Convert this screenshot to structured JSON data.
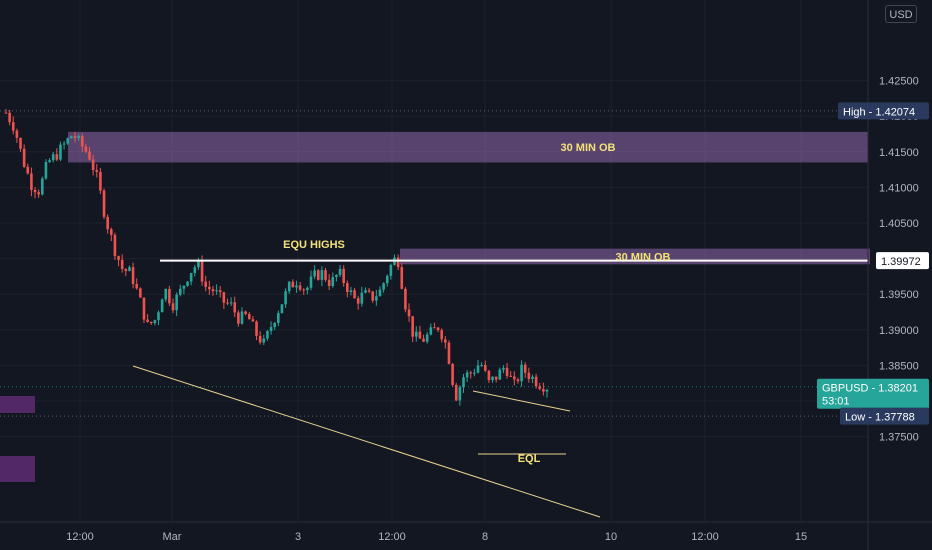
{
  "chart_data": {
    "type": "candlestick",
    "symbol": "GBPUSD",
    "currency": "USD",
    "price_axis": {
      "range": [
        1.3735,
        1.4255
      ],
      "ticks": [
        1.375,
        1.38,
        1.385,
        1.39,
        1.395,
        1.4,
        1.405,
        1.41,
        1.415,
        1.42,
        1.425
      ],
      "tick_labels": [
        "1.37500",
        "1.38000",
        "1.38500",
        "1.39000",
        "1.39500",
        "1.40000",
        "1.40500",
        "1.41000",
        "1.41500",
        "1.42000",
        "1.42500"
      ]
    },
    "time_axis": {
      "tick_labels": [
        "12:00",
        "Mar",
        "3",
        "12:00",
        "8",
        "10",
        "12:00",
        "15"
      ]
    },
    "markers": {
      "high": {
        "label": "High",
        "value": "1.42074"
      },
      "low": {
        "label": "Low",
        "value": "1.37788"
      },
      "level": {
        "value": "1.39972"
      },
      "current": {
        "label": "GBPUSD",
        "value": "1.38201",
        "countdown": "53:01"
      }
    },
    "zones": [
      {
        "label": "30 MIN OB",
        "from": 1.4135,
        "to": 1.4178
      },
      {
        "label": "30 MIN OB",
        "from": 1.3992,
        "to": 1.4014
      }
    ],
    "annotations": [
      "EQU HIGHS",
      "EQL"
    ],
    "close_path": [
      1.4205,
      1.4185,
      1.414,
      1.4105,
      1.4095,
      1.4135,
      1.4145,
      1.416,
      1.4175,
      1.416,
      1.4145,
      1.411,
      1.4055,
      1.4015,
      1.3985,
      1.398,
      1.3945,
      1.3905,
      1.3915,
      1.396,
      1.3935,
      1.3955,
      1.398,
      1.3993,
      1.396,
      1.3955,
      1.394,
      1.3935,
      1.3915,
      1.392,
      1.3895,
      1.388,
      1.391,
      1.3935,
      1.396,
      1.397,
      1.3955,
      1.3975,
      1.398,
      1.3965,
      1.398,
      1.396,
      1.394,
      1.395,
      1.3945,
      1.3955,
      1.3985,
      1.4005,
      1.3935,
      1.389,
      1.3885,
      1.3895,
      1.3905,
      1.3875,
      1.3805,
      1.3835,
      1.384,
      1.3855,
      1.3825,
      1.3835,
      1.385,
      1.382,
      1.3845,
      1.3835,
      1.3825,
      1.382
    ],
    "colors": {
      "background": "#131722",
      "up": "#26a69a",
      "down": "#ef5350",
      "zone": "#9b6fb8",
      "line_white": "#ffffff",
      "trendline": "#e8d38f",
      "label_yellow": "#f3e27a",
      "tag_navy": "#2a3a5e",
      "tag_current": "#26a69a"
    }
  }
}
